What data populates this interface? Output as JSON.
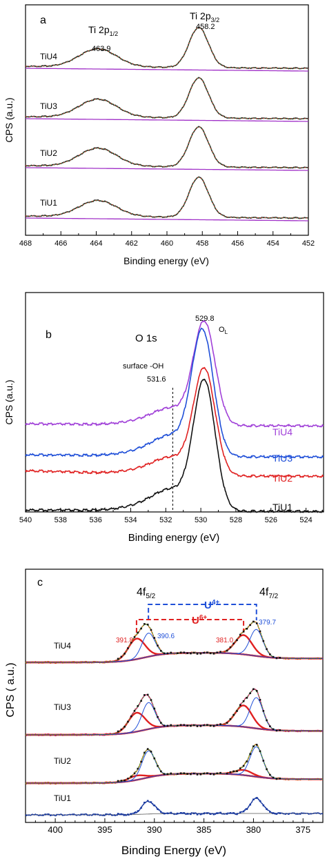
{
  "chart_data": [
    {
      "type": "line",
      "panel_label": "a",
      "xlabel": "Binding energy (eV)",
      "ylabel": "CPS (a.u.)",
      "xlim": [
        468,
        452
      ],
      "x_ticks": [
        468,
        466,
        464,
        462,
        460,
        458,
        456,
        454,
        452
      ],
      "peak_labels": [
        {
          "text": "Ti 2p",
          "sub": "1/2"
        },
        {
          "text": "Ti 2p",
          "sub": "3/2"
        }
      ],
      "annotations": [
        "463.9",
        "458.2"
      ],
      "series": [
        {
          "name": "TiU4",
          "peaks": [
            463.9,
            458.2
          ],
          "heights": [
            0.45,
            1.0
          ]
        },
        {
          "name": "TiU3",
          "peaks": [
            463.9,
            458.2
          ],
          "heights": [
            0.45,
            1.0
          ]
        },
        {
          "name": "TiU2",
          "peaks": [
            463.9,
            458.2
          ],
          "heights": [
            0.45,
            1.0
          ]
        },
        {
          "name": "TiU1",
          "peaks": [
            463.9,
            458.2
          ],
          "heights": [
            0.4,
            1.0
          ]
        }
      ],
      "colors": {
        "data": "#2a2a2a",
        "fit": "#d42a2a",
        "envelope": "#3a9a3a",
        "background": "#a030c8"
      }
    },
    {
      "type": "line",
      "panel_label": "b",
      "title": "O 1s",
      "xlabel": "Binding energy (eV)",
      "ylabel": "CPS (a.u.)",
      "xlim": [
        540,
        523
      ],
      "x_ticks": [
        540,
        538,
        536,
        534,
        532,
        530,
        528,
        526,
        524
      ],
      "annotations": [
        "529.8",
        "O",
        "L",
        "surface -OH",
        "531.6"
      ],
      "marker_line_x": 531.6,
      "series": [
        {
          "name": "TiU4",
          "color": "#a040d8",
          "peak": 529.8
        },
        {
          "name": "TiU3",
          "color": "#1f4fd8",
          "peak": 529.9
        },
        {
          "name": "TiU2",
          "color": "#e02020",
          "peak": 529.8
        },
        {
          "name": "TiU1",
          "color": "#111111",
          "peak": 529.8
        }
      ]
    },
    {
      "type": "line",
      "panel_label": "c",
      "xlabel": "Binding Energy (eV)",
      "ylabel": "CPS ( a.u.)",
      "xlim": [
        403,
        373
      ],
      "x_ticks": [
        400,
        395,
        390,
        385,
        380,
        375
      ],
      "peak_labels": [
        {
          "text": "4f",
          "sub": "5/2"
        },
        {
          "text": "4f",
          "sub": "7/2"
        }
      ],
      "bracket_labels": [
        {
          "text": "U",
          "sup": "4+",
          "color": "#1f4fd8"
        },
        {
          "text": "U",
          "sup": "6+",
          "color": "#e02020"
        }
      ],
      "annotations": [
        "391.8",
        "390.6",
        "381.0",
        "379.7"
      ],
      "series": [
        {
          "name": "TiU4",
          "raw_color": "#e07020",
          "u4": [
            0.55,
            0.62
          ],
          "u6": [
            0.48,
            0.45
          ]
        },
        {
          "name": "TiU3",
          "raw_color": "#d8246e",
          "u4": [
            0.62,
            0.72
          ],
          "u6": [
            0.44,
            0.5
          ]
        },
        {
          "name": "TiU2",
          "raw_color": "#c87a20",
          "u4": [
            0.62,
            0.7
          ],
          "u6": [
            0.1,
            0.12
          ]
        },
        {
          "name": "TiU1",
          "raw_color": "#1a3aa0",
          "u4": [
            0.3,
            0.35
          ],
          "u6": [
            0.0,
            0.0
          ]
        }
      ],
      "colors": {
        "u4_fit": "#1f4fd8",
        "u6_fit": "#e02020",
        "background": "#8b1010",
        "envelope": "#3a9a3a",
        "raw": "#111111"
      }
    }
  ]
}
